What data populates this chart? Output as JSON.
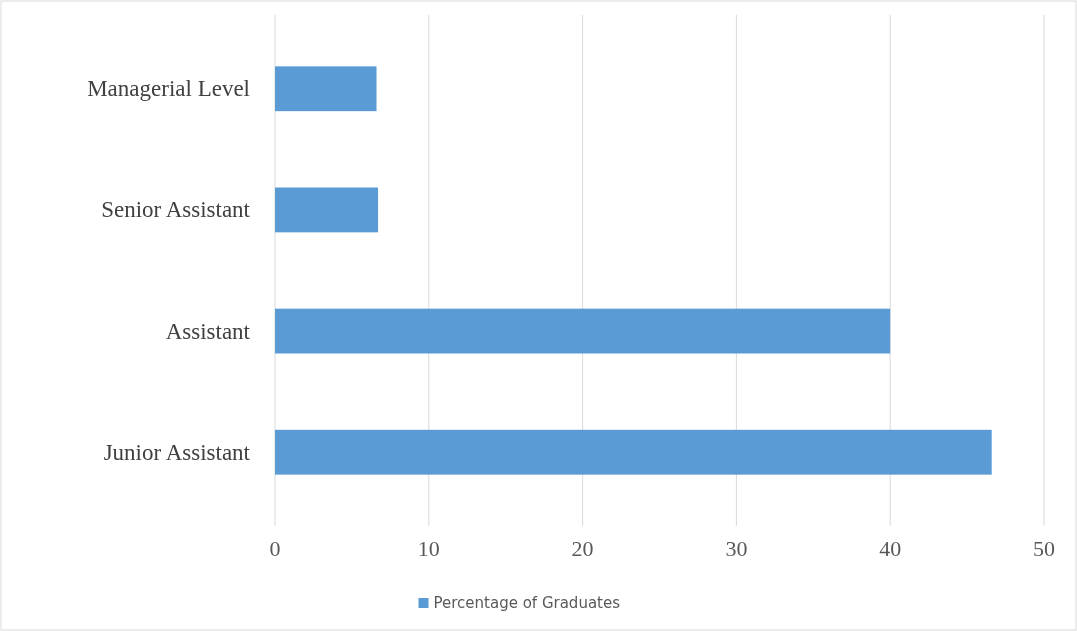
{
  "chart_data": {
    "type": "bar",
    "orientation": "horizontal",
    "categories": [
      "Managerial Level",
      "Senior Assistant",
      "Assistant",
      "Junior Assistant"
    ],
    "series": [
      {
        "name": "Percentage of Graduates",
        "color": "#5b9bd5",
        "values": [
          6.6,
          6.7,
          40,
          46.6
        ]
      }
    ],
    "xlim": [
      0,
      50
    ],
    "xticks": [
      0,
      10,
      20,
      30,
      40,
      50
    ],
    "grid": "x",
    "legend": "bottom"
  }
}
